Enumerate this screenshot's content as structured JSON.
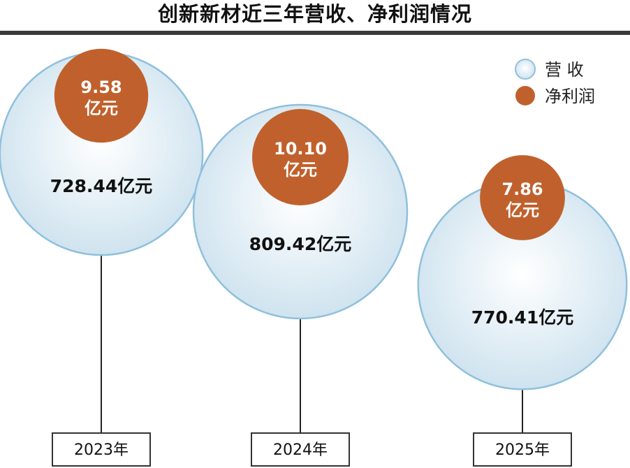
{
  "title": "创新新材近三年营收、净利润情况",
  "colors": {
    "revenue_fill_center": "#ffffff",
    "revenue_fill_edge": "#cfe3ef",
    "revenue_stroke": "#8fc0dc",
    "net_profit_fill": "#c0612d",
    "title_rule": "#3a3a3a"
  },
  "legend": [
    {
      "label": "营  收",
      "series": "revenue"
    },
    {
      "label": "净利润",
      "series": "net_profit"
    }
  ],
  "chart_data": {
    "type": "bubble",
    "title": "创新新材近三年营收、净利润情况",
    "categories": [
      "2023年",
      "2024年",
      "2025年"
    ],
    "series": [
      {
        "name": "营  收",
        "key": "revenue",
        "values": [
          728.44,
          809.42,
          770.41
        ],
        "labels": [
          "728.44亿元",
          "809.42亿元",
          "770.41亿元"
        ]
      },
      {
        "name": "净利润",
        "key": "net_profit",
        "values": [
          9.58,
          10.1,
          7.86
        ],
        "labels": [
          "9.58",
          "10.10",
          "7.86"
        ],
        "label_unit": "亿元"
      }
    ],
    "legend_position": "top-right",
    "grid": false
  }
}
